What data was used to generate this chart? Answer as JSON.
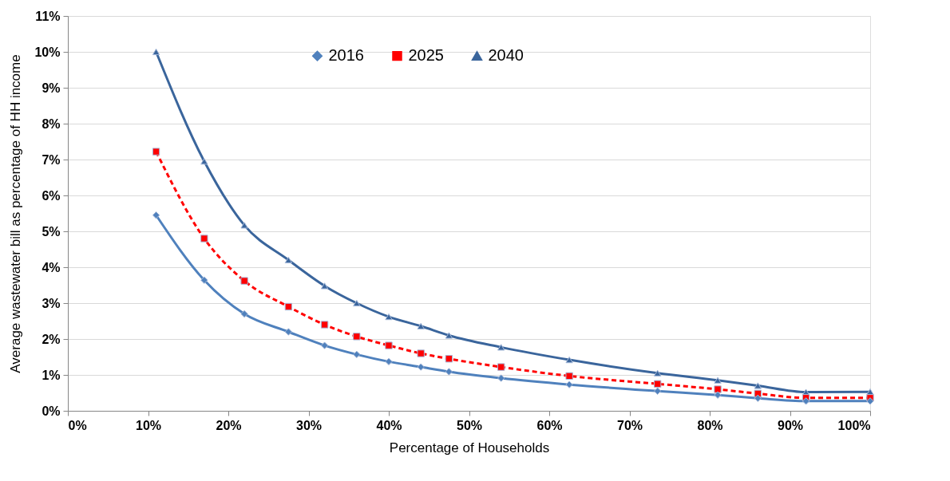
{
  "chart_data": {
    "type": "line",
    "xlabel": "Percentage of Households",
    "ylabel": "Average  wastewater bill as percentage of HH income",
    "x": [
      11,
      17,
      22,
      27.5,
      32,
      36,
      40,
      44,
      47.5,
      54,
      62.5,
      73.5,
      81,
      86,
      92,
      100
    ],
    "series": [
      {
        "name": "2016",
        "color": "#4f81bd",
        "marker": "diamond",
        "line_style": "solid",
        "values": [
          5.45,
          3.64,
          2.7,
          2.2,
          1.82,
          1.57,
          1.37,
          1.22,
          1.09,
          0.91,
          0.73,
          0.55,
          0.44,
          0.35,
          0.27,
          0.27
        ]
      },
      {
        "name": "2025",
        "color": "#ff0000",
        "marker": "square",
        "line_style": "dashed",
        "values": [
          7.22,
          4.8,
          3.62,
          2.9,
          2.4,
          2.07,
          1.82,
          1.6,
          1.45,
          1.22,
          0.97,
          0.75,
          0.6,
          0.48,
          0.36,
          0.36
        ]
      },
      {
        "name": "2040",
        "color": "#3a659c",
        "marker": "triangle",
        "line_style": "solid",
        "values": [
          10.0,
          6.95,
          5.17,
          4.2,
          3.48,
          3.0,
          2.62,
          2.36,
          2.1,
          1.77,
          1.42,
          1.05,
          0.85,
          0.7,
          0.52,
          0.53
        ]
      }
    ],
    "xlim": [
      0,
      100
    ],
    "xticks": [
      {
        "value": 0,
        "label": "0%"
      },
      {
        "value": 10,
        "label": "10%"
      },
      {
        "value": 20,
        "label": "20%"
      },
      {
        "value": 30,
        "label": "30%"
      },
      {
        "value": 40,
        "label": "40%"
      },
      {
        "value": 50,
        "label": "50%"
      },
      {
        "value": 60,
        "label": "60%"
      },
      {
        "value": 70,
        "label": "70%"
      },
      {
        "value": 80,
        "label": "80%"
      },
      {
        "value": 90,
        "label": "90%"
      },
      {
        "value": 100,
        "label": "100%"
      }
    ],
    "ylim": [
      0,
      11
    ],
    "yticks": [
      {
        "value": 0,
        "label": "0%"
      },
      {
        "value": 1,
        "label": "1%"
      },
      {
        "value": 2,
        "label": "2%"
      },
      {
        "value": 3,
        "label": "3%"
      },
      {
        "value": 4,
        "label": "4%"
      },
      {
        "value": 5,
        "label": "5%"
      },
      {
        "value": 6,
        "label": "6%"
      },
      {
        "value": 7,
        "label": "7%"
      },
      {
        "value": 8,
        "label": "8%"
      },
      {
        "value": 9,
        "label": "9%"
      },
      {
        "value": 10,
        "label": "10%"
      },
      {
        "value": 11,
        "label": "11%"
      }
    ],
    "grid": "y",
    "legend": "top"
  }
}
